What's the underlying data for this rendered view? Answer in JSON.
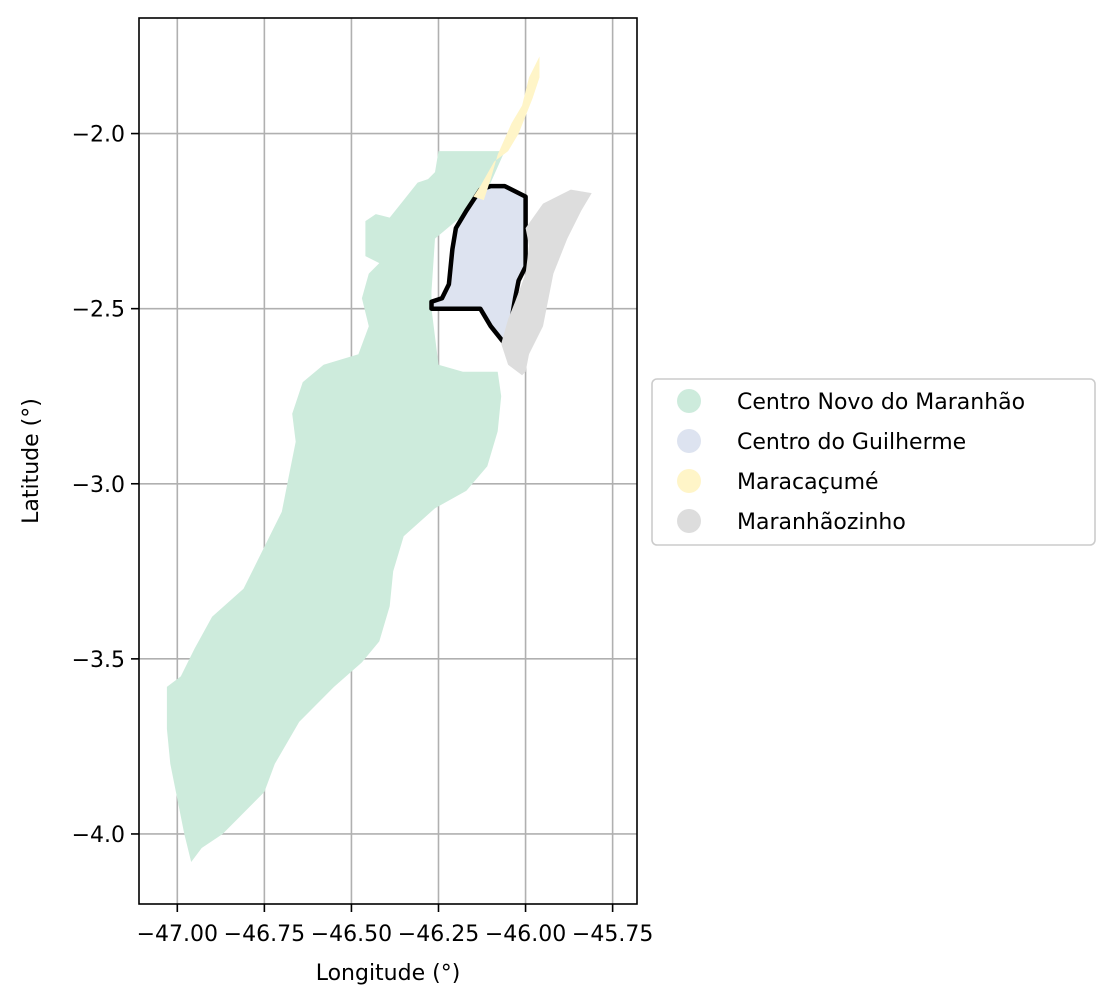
{
  "chart_data": {
    "type": "map",
    "xlabel": "Longitude (°)",
    "ylabel": "Latitude (°)",
    "xlim": [
      -47.11,
      -45.68
    ],
    "ylim": [
      -4.2,
      -1.67
    ],
    "x_ticks": [
      -47.0,
      -46.75,
      -46.5,
      -46.25,
      -46.0,
      -45.75
    ],
    "x_tick_labels": [
      "−47.00",
      "−46.75",
      "−46.50",
      "−46.25",
      "−46.00",
      "−45.75"
    ],
    "y_ticks": [
      -2.0,
      -2.5,
      -3.0,
      -3.5,
      -4.0
    ],
    "y_tick_labels": [
      "−2.0",
      "−2.5",
      "−3.0",
      "−3.5",
      "−4.0"
    ],
    "grid": true,
    "legend_position": "right",
    "regions": [
      {
        "name": "Centro Novo do Maranhão",
        "color": "#cdebdc",
        "outline": false,
        "coords": [
          [
            -46.25,
            -2.05
          ],
          [
            -46.06,
            -2.05
          ],
          [
            -46.1,
            -2.14
          ],
          [
            -46.12,
            -2.19
          ],
          [
            -46.2,
            -2.25
          ],
          [
            -46.26,
            -2.3
          ],
          [
            -46.27,
            -2.45
          ],
          [
            -46.27,
            -2.5
          ],
          [
            -46.25,
            -2.66
          ],
          [
            -46.18,
            -2.68
          ],
          [
            -46.08,
            -2.68
          ],
          [
            -46.07,
            -2.75
          ],
          [
            -46.08,
            -2.85
          ],
          [
            -46.11,
            -2.95
          ],
          [
            -46.17,
            -3.02
          ],
          [
            -46.26,
            -3.07
          ],
          [
            -46.35,
            -3.15
          ],
          [
            -46.38,
            -3.25
          ],
          [
            -46.39,
            -3.35
          ],
          [
            -46.42,
            -3.45
          ],
          [
            -46.47,
            -3.51
          ],
          [
            -46.55,
            -3.58
          ],
          [
            -46.65,
            -3.68
          ],
          [
            -46.72,
            -3.8
          ],
          [
            -46.75,
            -3.88
          ],
          [
            -46.82,
            -3.95
          ],
          [
            -46.87,
            -4.0
          ],
          [
            -46.93,
            -4.04
          ],
          [
            -46.96,
            -4.08
          ],
          [
            -46.98,
            -4.0
          ],
          [
            -47.0,
            -3.9
          ],
          [
            -47.02,
            -3.8
          ],
          [
            -47.03,
            -3.7
          ],
          [
            -47.03,
            -3.58
          ],
          [
            -46.99,
            -3.55
          ],
          [
            -46.95,
            -3.47
          ],
          [
            -46.9,
            -3.38
          ],
          [
            -46.81,
            -3.3
          ],
          [
            -46.75,
            -3.18
          ],
          [
            -46.7,
            -3.08
          ],
          [
            -46.68,
            -2.98
          ],
          [
            -46.66,
            -2.88
          ],
          [
            -46.67,
            -2.8
          ],
          [
            -46.64,
            -2.71
          ],
          [
            -46.58,
            -2.66
          ],
          [
            -46.48,
            -2.63
          ],
          [
            -46.45,
            -2.55
          ],
          [
            -46.47,
            -2.47
          ],
          [
            -46.45,
            -2.4
          ],
          [
            -46.42,
            -2.37
          ],
          [
            -46.46,
            -2.35
          ],
          [
            -46.46,
            -2.25
          ],
          [
            -46.43,
            -2.23
          ],
          [
            -46.39,
            -2.24
          ],
          [
            -46.35,
            -2.19
          ],
          [
            -46.31,
            -2.14
          ],
          [
            -46.28,
            -2.13
          ],
          [
            -46.26,
            -2.11
          ]
        ]
      },
      {
        "name": "Centro do Guilherme",
        "color": "#dde3f0",
        "outline": true,
        "coords": [
          [
            -46.13,
            -2.16
          ],
          [
            -46.1,
            -2.15
          ],
          [
            -46.06,
            -2.15
          ],
          [
            -46.0,
            -2.18
          ],
          [
            -46.0,
            -2.25
          ],
          [
            -46.0,
            -2.32
          ],
          [
            -46.0,
            -2.38
          ],
          [
            -46.02,
            -2.42
          ],
          [
            -46.03,
            -2.47
          ],
          [
            -46.04,
            -2.53
          ],
          [
            -46.06,
            -2.6
          ],
          [
            -46.1,
            -2.55
          ],
          [
            -46.13,
            -2.5
          ],
          [
            -46.2,
            -2.5
          ],
          [
            -46.27,
            -2.5
          ],
          [
            -46.27,
            -2.48
          ],
          [
            -46.24,
            -2.47
          ],
          [
            -46.22,
            -2.43
          ],
          [
            -46.21,
            -2.33
          ],
          [
            -46.2,
            -2.27
          ],
          [
            -46.17,
            -2.22
          ]
        ]
      },
      {
        "name": "Maracaçumé",
        "color": "#fff5c8",
        "outline": false,
        "coords": [
          [
            -45.96,
            -1.78
          ],
          [
            -45.99,
            -1.84
          ],
          [
            -46.01,
            -1.92
          ],
          [
            -46.04,
            -1.97
          ],
          [
            -46.08,
            -2.06
          ],
          [
            -46.1,
            -2.13
          ],
          [
            -46.12,
            -2.19
          ],
          [
            -46.15,
            -2.18
          ],
          [
            -46.13,
            -2.15
          ],
          [
            -46.09,
            -2.08
          ],
          [
            -46.05,
            -2.05
          ],
          [
            -46.02,
            -2.0
          ],
          [
            -45.98,
            -1.9
          ],
          [
            -45.96,
            -1.84
          ]
        ]
      },
      {
        "name": "Maranhãozinho",
        "color": "#dddddd",
        "outline": false,
        "coords": [
          [
            -46.0,
            -2.27
          ],
          [
            -45.95,
            -2.2
          ],
          [
            -45.87,
            -2.16
          ],
          [
            -45.81,
            -2.17
          ],
          [
            -45.84,
            -2.22
          ],
          [
            -45.88,
            -2.3
          ],
          [
            -45.92,
            -2.4
          ],
          [
            -45.95,
            -2.55
          ],
          [
            -45.99,
            -2.63
          ],
          [
            -46.0,
            -2.68
          ],
          [
            -46.01,
            -2.69
          ],
          [
            -46.05,
            -2.66
          ],
          [
            -46.07,
            -2.6
          ],
          [
            -46.05,
            -2.53
          ],
          [
            -46.03,
            -2.48
          ],
          [
            -46.0,
            -2.4
          ],
          [
            -45.99,
            -2.32
          ]
        ]
      }
    ]
  }
}
